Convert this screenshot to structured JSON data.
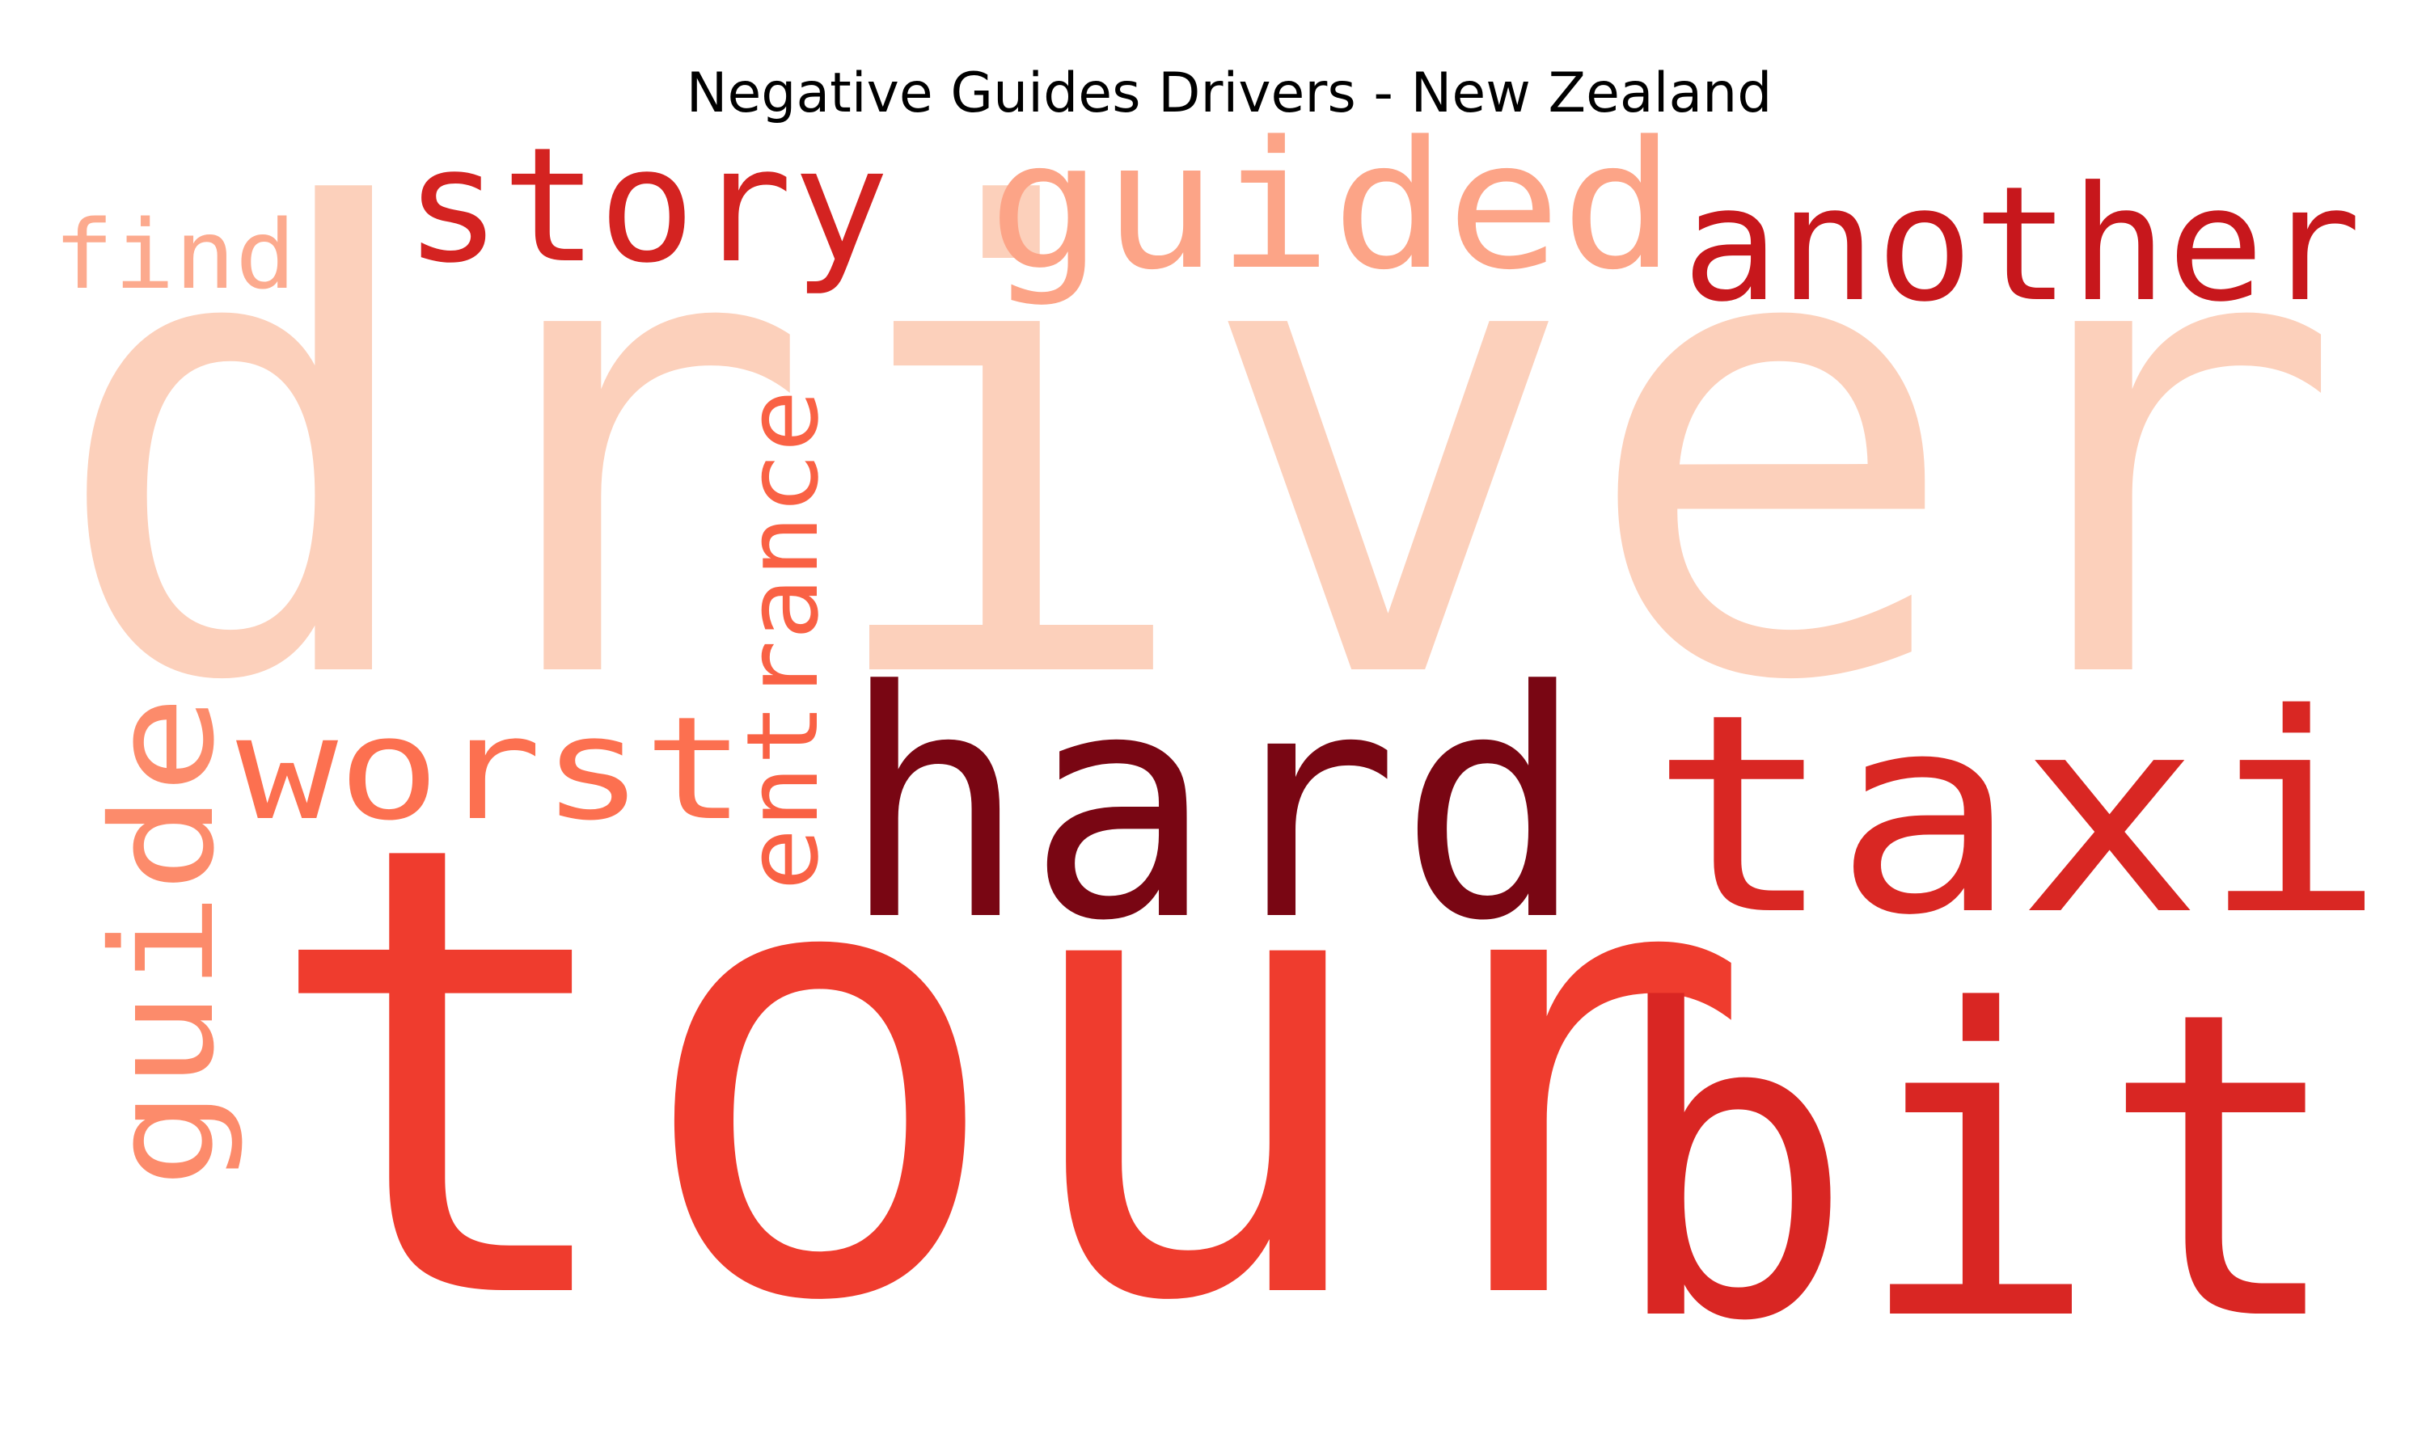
{
  "title": "Negative Guides Drivers - New Zealand",
  "words": [
    {
      "text": "driver",
      "color": "#fcd0bb"
    },
    {
      "text": "tour",
      "color": "#ef3c2e"
    },
    {
      "text": "bit",
      "color": "#d92623"
    },
    {
      "text": "hard",
      "color": "#790613"
    },
    {
      "text": "taxi",
      "color": "#d92723"
    },
    {
      "text": "another",
      "color": "#c7171c"
    },
    {
      "text": "guided",
      "color": "#fca487"
    },
    {
      "text": "story",
      "color": "#d42321"
    },
    {
      "text": "worst",
      "color": "#fc7050"
    },
    {
      "text": "guide",
      "color": "#fc8b6b"
    },
    {
      "text": "entrance",
      "color": "#f96144"
    },
    {
      "text": "find",
      "color": "#fcaa8e"
    }
  ]
}
